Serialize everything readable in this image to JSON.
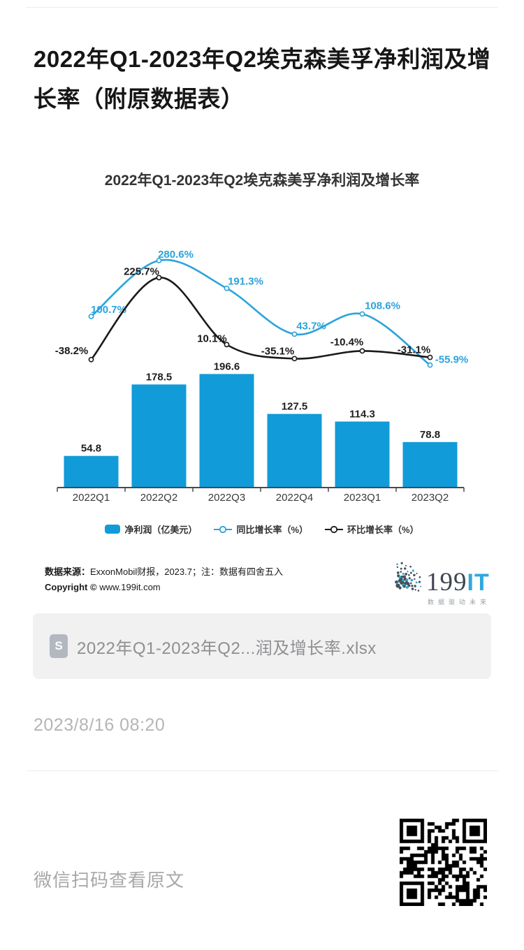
{
  "page": {
    "title": "2022年Q1-2023年Q2埃克森美孚净利润及增长率（附原数据表）",
    "timestamp": "2023/8/16 08:20",
    "scan_hint": "微信扫码查看原文"
  },
  "chart_data": {
    "type": "combo",
    "title": "2022年Q1-2023年Q2埃克森美孚净利润及增长率",
    "categories": [
      "2022Q1",
      "2022Q2",
      "2022Q3",
      "2022Q4",
      "2023Q1",
      "2023Q2"
    ],
    "series": [
      {
        "name": "净利润（亿美元）",
        "type": "bar",
        "values": [
          54.8,
          178.5,
          196.6,
          127.5,
          114.3,
          78.8
        ],
        "color": "#119BD9",
        "label_color": "#1f1f1f"
      },
      {
        "name": "同比增长率（%）",
        "type": "line",
        "values": [
          100.7,
          280.6,
          191.3,
          43.7,
          108.6,
          -55.9
        ],
        "color": "#2BA3DC",
        "label_suffix": "%",
        "label_offsets": [
          [
            25,
            -10
          ],
          [
            24,
            -9
          ],
          [
            27,
            -10
          ],
          [
            24,
            -12
          ],
          [
            29,
            -12
          ],
          [
            31,
            -8
          ]
        ]
      },
      {
        "name": "环比增长率（%）",
        "type": "line",
        "values": [
          -38.2,
          225.7,
          10.1,
          -35.1,
          -10.4,
          -31.1
        ],
        "color": "#1A1A1A",
        "label_suffix": "%",
        "label_offsets": [
          [
            -28,
            -13
          ],
          [
            -25,
            -9
          ],
          [
            -21,
            -9
          ],
          [
            -24,
            -11
          ],
          [
            -22,
            -13
          ],
          [
            -23,
            -11
          ]
        ]
      }
    ],
    "legend_position": "bottom",
    "grid": false,
    "y_axis_hidden": true,
    "axis_color": "#4a4a4a",
    "category_label_color": "#3a3a3a"
  },
  "source": {
    "label": "数据来源：",
    "text": "ExxonMobil财报，2023.7；注：数据有四舍五入",
    "copyright_label": "Copyright ©",
    "copyright_url": "www.199it.com"
  },
  "logo": {
    "name_main": "199",
    "name_accent": "IT",
    "tagline": "数据驱动未来",
    "accent_color": "#2FA8DF",
    "dot_color": "#465059",
    "dot_accent_color": "#35A8CC"
  },
  "attachment": {
    "icon_letter": "S",
    "filename": "2022年Q1-2023年Q2...润及增长率.xlsx"
  }
}
